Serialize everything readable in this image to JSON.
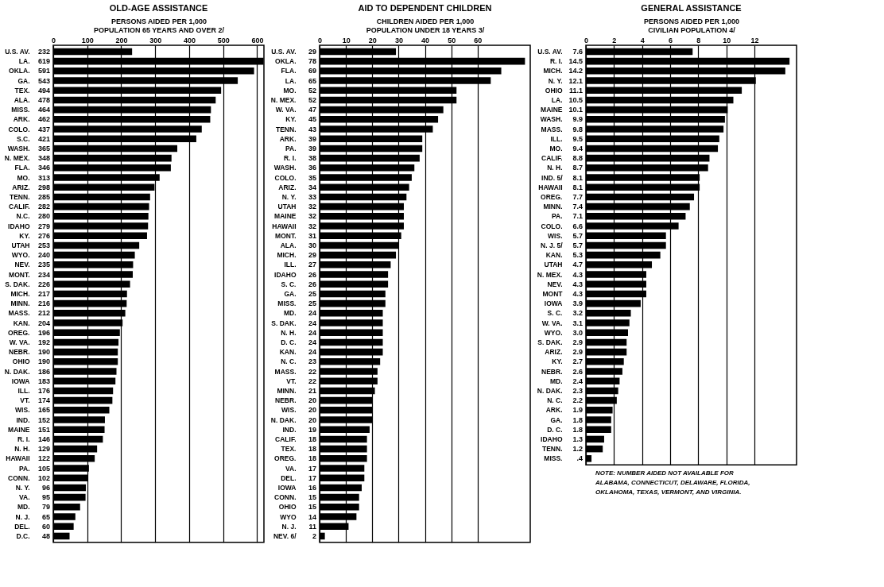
{
  "chart_data": [
    {
      "type": "bar",
      "orientation": "horizontal",
      "title": "OLD-AGE ASSISTANCE",
      "xlabel": "PERSONS AIDED PER 1,000\nPOPULATION 65 YEARS AND OVER 2/",
      "color": "#000000",
      "grid": "x",
      "data_labels": true,
      "xlim": [
        0,
        620
      ],
      "xticks": [
        0,
        100,
        200,
        300,
        400,
        500,
        600
      ],
      "categories": [
        "U.S. AV.",
        "LA.",
        "OKLA.",
        "GA.",
        "TEX.",
        "ALA.",
        "MISS.",
        "ARK.",
        "COLO.",
        "S.C.",
        "WASH.",
        "N. MEX.",
        "FLA.",
        "MO.",
        "ARIZ.",
        "TENN.",
        "CALIF.",
        "N.C.",
        "IDAHO",
        "KY.",
        "UTAH",
        "WYO.",
        "NEV.",
        "MONT.",
        "S. DAK.",
        "MICH.",
        "MINN.",
        "MASS.",
        "KAN.",
        "OREG.",
        "W. VA.",
        "NEBR.",
        "OHIO",
        "N. DAK.",
        "IOWA",
        "ILL.",
        "VT.",
        "WIS.",
        "IND.",
        "MAINE",
        "R. I.",
        "N. H.",
        "HAWAII",
        "PA.",
        "CONN.",
        "N. Y.",
        "VA.",
        "MD.",
        "N. J.",
        "DEL.",
        "D.C."
      ],
      "values": [
        232,
        619,
        591,
        543,
        494,
        478,
        464,
        462,
        437,
        421,
        365,
        348,
        346,
        313,
        298,
        285,
        282,
        280,
        279,
        276,
        253,
        240,
        235,
        234,
        226,
        217,
        216,
        212,
        204,
        196,
        192,
        190,
        190,
        186,
        183,
        176,
        174,
        165,
        152,
        151,
        146,
        129,
        122,
        105,
        102,
        96,
        95,
        79,
        65,
        60,
        48
      ]
    },
    {
      "type": "bar",
      "orientation": "horizontal",
      "title": "AID TO DEPENDENT CHILDREN",
      "xlabel": "CHILDREN AIDED PER 1,000\nPOPULATION UNDER 18 YEARS 3/",
      "color": "#000000",
      "grid": "x",
      "data_labels": true,
      "xlim": [
        0,
        80
      ],
      "xticks": [
        0,
        10,
        20,
        30,
        40,
        50,
        60
      ],
      "categories": [
        "U.S. AV.",
        "OKLA.",
        "FLA.",
        "LA.",
        "MO.",
        "N. MEX.",
        "W. VA.",
        "KY.",
        "TENN.",
        "ARK.",
        "PA.",
        "R. I.",
        "WASH.",
        "COLO.",
        "ARIZ.",
        "N. Y.",
        "UTAH",
        "MAINE",
        "HAWAII",
        "MONT.",
        "ALA.",
        "MICH.",
        "ILL.",
        "IDAHO",
        "S. C.",
        "GA.",
        "MISS.",
        "MD.",
        "S. DAK.",
        "N. H.",
        "D. C.",
        "KAN.",
        "N. C.",
        "MASS.",
        "VT.",
        "MINN.",
        "NEBR.",
        "WIS.",
        "N. DAK.",
        "IND.",
        "CALIF.",
        "TEX.",
        "OREG.",
        "VA.",
        "DEL.",
        "IOWA",
        "CONN.",
        "OHIO",
        "WYO",
        "N. J.",
        "NEV. 6/"
      ],
      "values": [
        29,
        78,
        69,
        65,
        52,
        52,
        47,
        45,
        43,
        39,
        39,
        38,
        36,
        35,
        34,
        33,
        32,
        32,
        32,
        31,
        30,
        29,
        27,
        26,
        26,
        25,
        25,
        24,
        24,
        24,
        24,
        24,
        23,
        22,
        22,
        21,
        20,
        20,
        20,
        19,
        18,
        18,
        18,
        17,
        17,
        16,
        15,
        15,
        14,
        11,
        2
      ]
    },
    {
      "type": "bar",
      "orientation": "horizontal",
      "title": "GENERAL ASSISTANCE",
      "xlabel": "PERSONS AIDED PER 1,000\nCIVILIAN POPULATION 4/",
      "color": "#000000",
      "grid": "x",
      "xlim": [
        0,
        15
      ],
      "xticks": [
        0,
        2,
        4,
        6,
        8,
        10,
        12
      ],
      "categories": [
        "U.S. AV.",
        "R. I.",
        "MICH.",
        "N. Y.",
        "OHIO",
        "LA.",
        "MAINE",
        "WASH.",
        "MASS.",
        "ILL.",
        "MO.",
        "CALIF.",
        "N. H.",
        "IND. 5/",
        "HAWAII",
        "OREG.",
        "MINN.",
        "PA.",
        "COLO.",
        "WIS.",
        "N. J. 5/",
        "KAN.",
        "UTAH",
        "N. MEX.",
        "NEV.",
        "MONT",
        "IOWA",
        "S. C.",
        "W. VA.",
        "WYO.",
        "S. DAK.",
        "ARIZ.",
        "KY.",
        "NEBR.",
        "MD.",
        "N. DAK.",
        "N. C.",
        "ARK.",
        "GA.",
        "D. C.",
        "IDAHO",
        "TENN.",
        "MISS."
      ],
      "values": [
        7.6,
        14.5,
        14.2,
        12.1,
        11.1,
        10.5,
        10.1,
        9.9,
        9.8,
        9.5,
        9.4,
        8.8,
        8.7,
        8.1,
        8.1,
        7.7,
        7.4,
        7.1,
        6.6,
        5.7,
        5.7,
        5.3,
        4.7,
        4.3,
        4.3,
        4.3,
        3.9,
        3.2,
        3.1,
        3.0,
        2.9,
        2.9,
        2.7,
        2.6,
        2.4,
        2.3,
        2.2,
        1.9,
        1.8,
        1.8,
        1.3,
        1.2,
        0.4
      ],
      "value_labels": [
        "7.6",
        "14.5",
        "14.2",
        "12.1",
        "11.1",
        "10.5",
        "10.1",
        "9.9",
        "9.8",
        "9.5",
        "9.4",
        "8.8",
        "8.7",
        "8.1",
        "8.1",
        "7.7",
        "7.4",
        "7.1",
        "6.6",
        "5.7",
        "5.7",
        "5.3",
        "4.7",
        "4.3",
        "4.3",
        "4.3",
        "3.9",
        "3.2",
        "3.1",
        "3.0",
        "2.9",
        "2.9",
        "2.7",
        "2.6",
        "2.4",
        "2.3",
        "2.2",
        "1.9",
        "1.8",
        "1.8",
        "1.3",
        "1.2",
        ".4"
      ],
      "annotations": [
        "NOTE: NUMBER AIDED NOT AVAILABLE FOR ALABAMA, CONNECTICUT, DELAWARE, FLORIDA, OKLAHOMA, TEXAS, VERMONT, AND VIRGINIA."
      ]
    }
  ]
}
